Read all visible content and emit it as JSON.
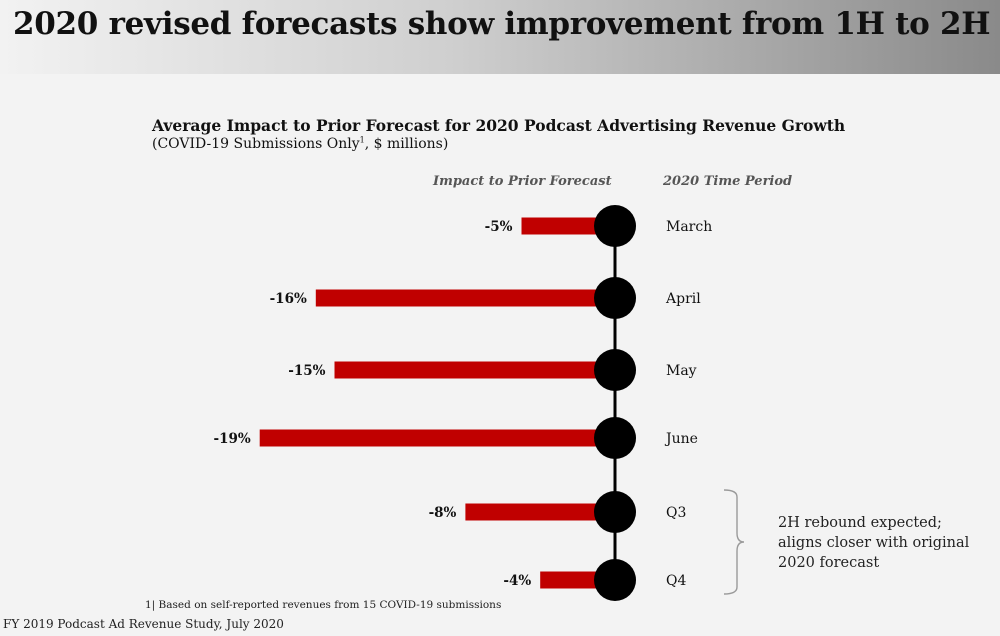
{
  "header": {
    "title": "2020 revised forecasts show improvement from 1H to 2H"
  },
  "chart_data": {
    "type": "bar",
    "orientation": "horizontal",
    "title": "Average Impact to Prior Forecast for 2020 Podcast Advertising Revenue Growth",
    "subtitle": "(COVID-19 Submissions Only",
    "subtitle_sup": "1",
    "subtitle_end": ", $ millions)",
    "column_headers": {
      "impact": "Impact to Prior Forecast",
      "period": "2020 Time Period"
    },
    "categories": [
      "March",
      "April",
      "May",
      "June",
      "Q3",
      "Q4"
    ],
    "values": [
      -5,
      -16,
      -15,
      -19,
      -8,
      -4
    ],
    "value_labels": [
      "-5%",
      "-16%",
      "-15%",
      "-19%",
      "-8%",
      "-4%"
    ],
    "bar_color": "#c00000",
    "marker_color": "#000000"
  },
  "annotation": {
    "text": "2H rebound expected; aligns closer with original 2020 forecast"
  },
  "footnote": "1| Based on self-reported revenues from 15 COVID-19 submissions",
  "source": "FY 2019 Podcast Ad Revenue Study, July 2020"
}
